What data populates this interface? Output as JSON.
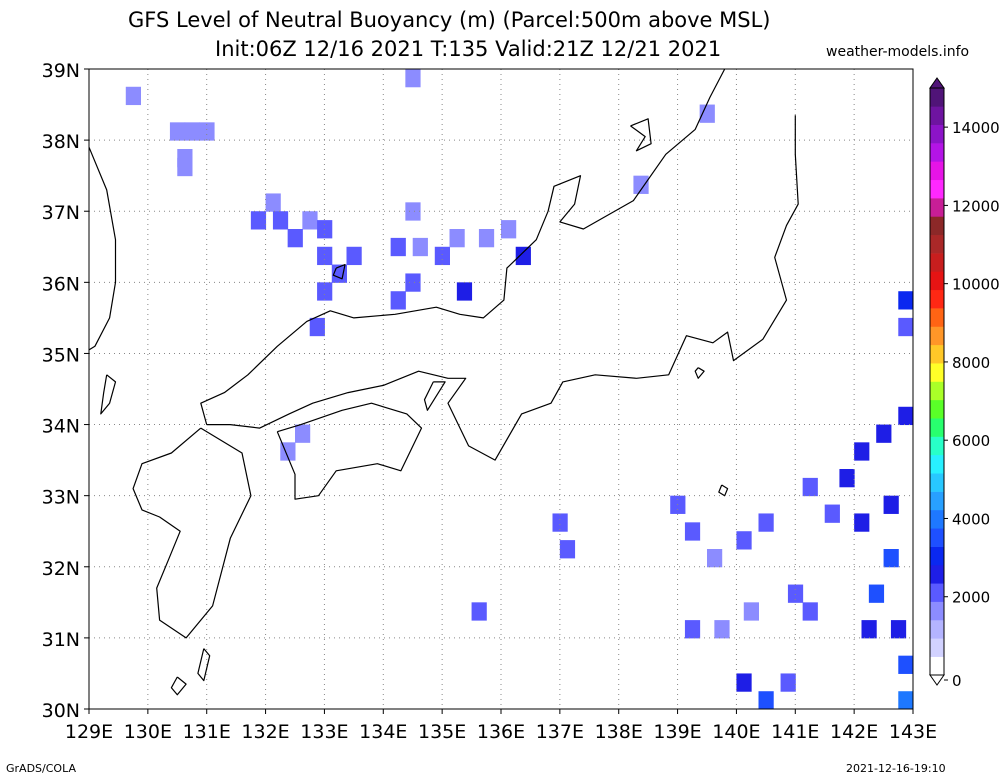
{
  "header": {
    "title_line1": "GFS Level of Neutral Buoyancy (m) (Parcel:500m above MSL)",
    "title_line2": "Init:06Z 12/16 2021 T:135 Valid:21Z 12/21 2021",
    "site": "weather-models.info"
  },
  "footer": {
    "left": "GrADS/COLA",
    "right": "2021-12-16-19:10"
  },
  "chart_data": {
    "type": "heatmap",
    "title": "GFS Level of Neutral Buoyancy (m) (Parcel:500m above MSL)",
    "subtitle": "Init:06Z 12/16 2021 T:135 Valid:21Z 12/21 2021",
    "units": "m",
    "xlim": [
      129,
      143
    ],
    "ylim": [
      30,
      39
    ],
    "x_ticks": [
      129,
      130,
      131,
      132,
      133,
      134,
      135,
      136,
      137,
      138,
      139,
      140,
      141,
      142,
      143
    ],
    "x_tick_labels": [
      "129E",
      "130E",
      "131E",
      "132E",
      "133E",
      "134E",
      "135E",
      "136E",
      "137E",
      "138E",
      "139E",
      "140E",
      "141E",
      "142E",
      "143E"
    ],
    "y_ticks": [
      30,
      31,
      32,
      33,
      34,
      35,
      36,
      37,
      38,
      39
    ],
    "y_tick_labels": [
      "30N",
      "31N",
      "32N",
      "33N",
      "34N",
      "35N",
      "36N",
      "37N",
      "38N",
      "39N"
    ],
    "grid": true,
    "grid_style": "dotted",
    "colorbar": {
      "position": "right",
      "min": 0,
      "max": 15000,
      "tick_values": [
        0,
        2000,
        4000,
        6000,
        8000,
        10000,
        12000,
        14000
      ],
      "tick_labels": [
        "0",
        "2000",
        "4000",
        "6000",
        "8000",
        "10000",
        "12000",
        "14000"
      ],
      "colors": [
        "#ffffff",
        "#d2d2ff",
        "#b4b4ff",
        "#8c8cff",
        "#5a5aff",
        "#1e1ee6",
        "#0a28f0",
        "#1e50ff",
        "#1e78ff",
        "#28a0ff",
        "#28c8ff",
        "#28f0ff",
        "#28ffc8",
        "#28ff6e",
        "#5aff28",
        "#aaff28",
        "#ffff28",
        "#ffc828",
        "#ff9628",
        "#ff6414",
        "#ff2814",
        "#e61414",
        "#c81e1e",
        "#aa2828",
        "#8c2828",
        "#c81e96",
        "#ff28ff",
        "#e614e6",
        "#b414e6",
        "#8c14c8",
        "#6e14a0",
        "#501478"
      ]
    },
    "cells": [
      {
        "lon": 129.75,
        "lat": 38.625,
        "value": 1700
      },
      {
        "lon": 130.5,
        "lat": 38.125,
        "value": 1500
      },
      {
        "lon": 130.75,
        "lat": 38.125,
        "value": 1600
      },
      {
        "lon": 131.0,
        "lat": 38.125,
        "value": 1600
      },
      {
        "lon": 130.625,
        "lat": 37.75,
        "value": 1600
      },
      {
        "lon": 130.625,
        "lat": 37.625,
        "value": 1700
      },
      {
        "lon": 134.5,
        "lat": 38.875,
        "value": 1600
      },
      {
        "lon": 139.5,
        "lat": 38.375,
        "value": 1500
      },
      {
        "lon": 138.375,
        "lat": 37.375,
        "value": 1500
      },
      {
        "lon": 132.125,
        "lat": 37.125,
        "value": 1700
      },
      {
        "lon": 131.875,
        "lat": 36.875,
        "value": 2100
      },
      {
        "lon": 132.25,
        "lat": 36.875,
        "value": 1900
      },
      {
        "lon": 132.75,
        "lat": 36.875,
        "value": 1800
      },
      {
        "lon": 133.0,
        "lat": 36.75,
        "value": 1900
      },
      {
        "lon": 132.5,
        "lat": 36.625,
        "value": 2000
      },
      {
        "lon": 133.0,
        "lat": 36.375,
        "value": 2100
      },
      {
        "lon": 133.5,
        "lat": 36.375,
        "value": 2000
      },
      {
        "lon": 133.25,
        "lat": 36.125,
        "value": 2200
      },
      {
        "lon": 133.0,
        "lat": 35.875,
        "value": 2300
      },
      {
        "lon": 132.875,
        "lat": 35.375,
        "value": 2100
      },
      {
        "lon": 134.25,
        "lat": 36.5,
        "value": 2000
      },
      {
        "lon": 134.5,
        "lat": 37.0,
        "value": 1500
      },
      {
        "lon": 134.625,
        "lat": 36.5,
        "value": 1700
      },
      {
        "lon": 134.5,
        "lat": 36.0,
        "value": 2100
      },
      {
        "lon": 134.25,
        "lat": 35.75,
        "value": 2300
      },
      {
        "lon": 135.0,
        "lat": 36.375,
        "value": 2100
      },
      {
        "lon": 135.25,
        "lat": 36.625,
        "value": 1800
      },
      {
        "lon": 135.75,
        "lat": 36.625,
        "value": 1700
      },
      {
        "lon": 136.125,
        "lat": 36.75,
        "value": 1700
      },
      {
        "lon": 136.375,
        "lat": 36.375,
        "value": 2500
      },
      {
        "lon": 135.375,
        "lat": 35.875,
        "value": 2400
      },
      {
        "lon": 132.625,
        "lat": 33.875,
        "value": 1800
      },
      {
        "lon": 132.375,
        "lat": 33.625,
        "value": 1800
      },
      {
        "lon": 137.0,
        "lat": 32.625,
        "value": 2300
      },
      {
        "lon": 137.125,
        "lat": 32.25,
        "value": 2200
      },
      {
        "lon": 135.625,
        "lat": 31.375,
        "value": 2200
      },
      {
        "lon": 139.0,
        "lat": 32.875,
        "value": 2300
      },
      {
        "lon": 139.25,
        "lat": 32.5,
        "value": 2200
      },
      {
        "lon": 139.625,
        "lat": 32.125,
        "value": 1700
      },
      {
        "lon": 140.125,
        "lat": 32.375,
        "value": 1900
      },
      {
        "lon": 140.5,
        "lat": 32.625,
        "value": 2300
      },
      {
        "lon": 139.25,
        "lat": 31.125,
        "value": 1900
      },
      {
        "lon": 139.75,
        "lat": 31.125,
        "value": 1800
      },
      {
        "lon": 140.25,
        "lat": 31.375,
        "value": 1700
      },
      {
        "lon": 140.125,
        "lat": 30.375,
        "value": 2400
      },
      {
        "lon": 140.875,
        "lat": 30.375,
        "value": 2200
      },
      {
        "lon": 140.5,
        "lat": 30.125,
        "value": 3400
      },
      {
        "lon": 141.0,
        "lat": 31.625,
        "value": 2300
      },
      {
        "lon": 141.25,
        "lat": 31.375,
        "value": 2000
      },
      {
        "lon": 141.25,
        "lat": 33.125,
        "value": 2300
      },
      {
        "lon": 141.625,
        "lat": 32.75,
        "value": 2300
      },
      {
        "lon": 141.875,
        "lat": 33.25,
        "value": 2600
      },
      {
        "lon": 142.125,
        "lat": 33.625,
        "value": 2500
      },
      {
        "lon": 142.5,
        "lat": 33.875,
        "value": 2500
      },
      {
        "lon": 142.875,
        "lat": 34.125,
        "value": 2400
      },
      {
        "lon": 142.125,
        "lat": 32.625,
        "value": 2800
      },
      {
        "lon": 142.625,
        "lat": 32.875,
        "value": 2800
      },
      {
        "lon": 142.625,
        "lat": 32.125,
        "value": 3700
      },
      {
        "lon": 142.375,
        "lat": 31.625,
        "value": 3300
      },
      {
        "lon": 142.25,
        "lat": 31.125,
        "value": 2400
      },
      {
        "lon": 142.75,
        "lat": 31.125,
        "value": 2800
      },
      {
        "lon": 142.875,
        "lat": 30.625,
        "value": 3500
      },
      {
        "lon": 142.875,
        "lat": 30.125,
        "value": 3800
      },
      {
        "lon": 142.875,
        "lat": 35.75,
        "value": 3000
      },
      {
        "lon": 142.875,
        "lat": 35.375,
        "value": 2200
      }
    ]
  }
}
